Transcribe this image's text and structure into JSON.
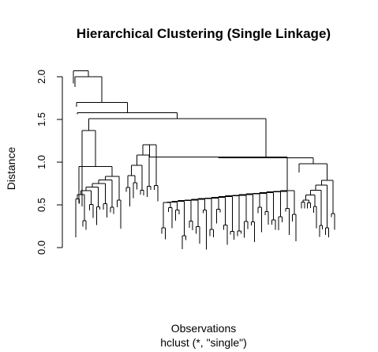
{
  "chart_data": {
    "type": "dendrogram",
    "title": "Hierarchical Clustering (Single Linkage)",
    "xlabel": "Observations",
    "sub": "hclust (*, \"single\")",
    "ylabel": "Distance",
    "ylim": [
      0,
      2.1
    ],
    "y_ticks": [
      0.0,
      0.5,
      1.0,
      1.5,
      2.0
    ],
    "y_tick_labels": [
      "0.0",
      "0.5",
      "1.0",
      "1.5",
      "2.0"
    ],
    "approx_merge_heights": [
      2.07,
      2.0,
      1.7,
      1.58,
      1.51,
      1.37,
      1.29,
      1.2,
      1.06,
      1.05,
      0.98,
      0.95,
      0.84,
      0.74,
      0.7,
      0.66,
      0.64,
      0.6
    ]
  }
}
